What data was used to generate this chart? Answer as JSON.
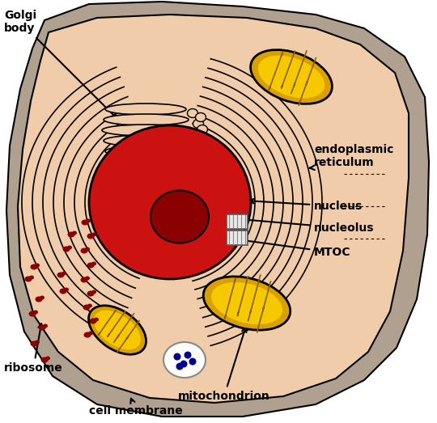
{
  "bg_color": "#ffffff",
  "cell_outer_color": "#b8a080",
  "cell_inner_color": "#f0ccaa",
  "nucleus_color": "#cc0000",
  "nucleolus_color": "#8b0000",
  "mitochondria_outer": "#daa000",
  "mitochondria_inner": "#f5c800",
  "er_line_color": "#000000",
  "ribosome_color": "#8b0000",
  "label_fontsize": 10,
  "arrow_color": "#000000",
  "vacuole_dot_color": "#00008b",
  "golgi_line_color": "#000000",
  "labels": {
    "golgi_body": "Golgi\nbody",
    "endoplasmic_reticulum": "endoplasmic\nreticulum",
    "nucleus": "nucleus",
    "nucleolus": "nucleolus",
    "mtoc": "MTOC",
    "ribosome": "ribosome",
    "cell_membrane": "cell membrane",
    "mitochondrion": "mitochondrion"
  }
}
